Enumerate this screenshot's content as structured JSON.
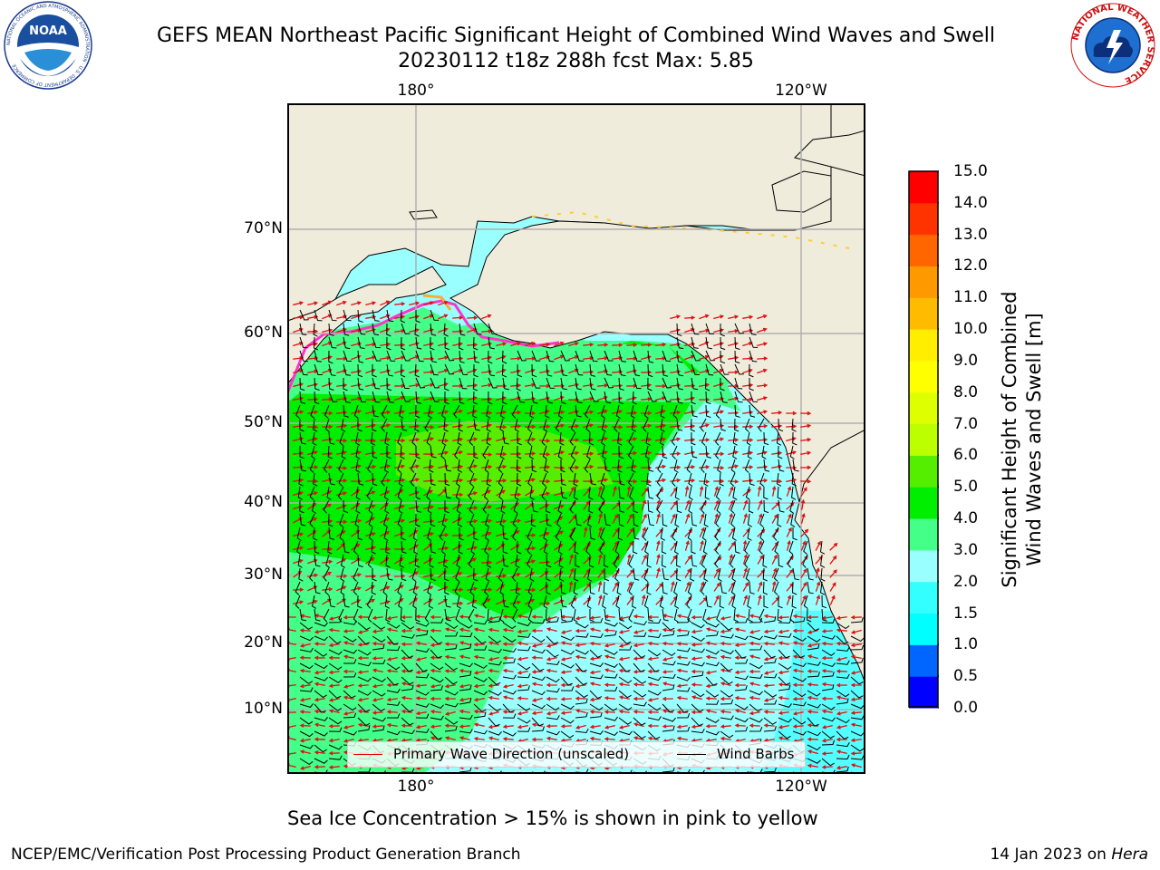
{
  "title": {
    "line1": "GEFS MEAN Northeast Pacific Significant Height of Combined Wind Waves and Swell",
    "line2": "20230112 t18z 288h fcst   Max: 5.85"
  },
  "logos": {
    "noaa": {
      "text": "NOAA",
      "ring_text": "NATIONAL OCEANIC AND ATMOSPHERIC ADMINISTRATION · U.S. DEPARTMENT OF COMMERCE"
    },
    "nws": {
      "ring_text": "NATIONAL WEATHER SERVICE"
    }
  },
  "map": {
    "longitude_labels_top": [
      "180°",
      "120°W"
    ],
    "longitude_labels_bottom": [
      "180°",
      "120°W"
    ],
    "latitude_labels": [
      "70°N",
      "60°N",
      "50°N",
      "40°N",
      "30°N",
      "20°N",
      "10°N"
    ],
    "land_color": "#efecdc",
    "grid": true
  },
  "legend": {
    "wave_direction": "Primary Wave Direction (unscaled)",
    "wind_barbs": "Wind Barbs"
  },
  "colorbar": {
    "title_line1": "Significant Height of Combined",
    "title_line2": "Wind Waves and Swell [m]",
    "tick_labels": [
      "15.0",
      "14.0",
      "13.0",
      "12.0",
      "11.0",
      "10.0",
      "9.0",
      "8.0",
      "7.0",
      "6.0",
      "5.0",
      "4.0",
      "3.0",
      "2.0",
      "1.5",
      "1.0",
      "0.5",
      "0.0"
    ],
    "colors": [
      "#0000ff",
      "#0066ff",
      "#00ffff",
      "#33ffff",
      "#99ffff",
      "#44ff88",
      "#00ee00",
      "#55ee00",
      "#bbff00",
      "#ddff00",
      "#ffff00",
      "#ffee00",
      "#ffbb00",
      "#ff9900",
      "#ff6600",
      "#ff3300",
      "#ff0000"
    ]
  },
  "ice_note": "Sea Ice Concentration > 15% is shown in pink to yellow",
  "footer": {
    "left": "NCEP/EMC/Verification Post Processing Product Generation Branch",
    "date": "14 Jan 2023 on ",
    "host": "Hera"
  }
}
